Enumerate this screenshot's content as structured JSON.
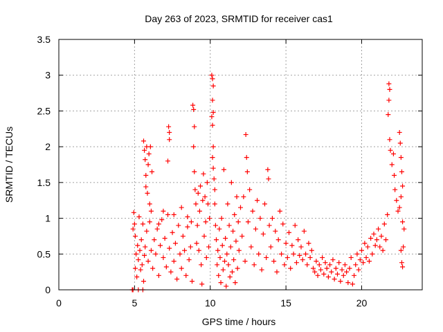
{
  "chart_data": {
    "type": "scatter",
    "title": "Day 263 of 2023, SRMTID for receiver cas1",
    "xlabel": "GPS time / hours",
    "ylabel": "SRMTID / TECUs",
    "xlim": [
      0,
      24
    ],
    "ylim": [
      0,
      3.5
    ],
    "x_ticks": [
      0,
      5,
      10,
      15,
      20
    ],
    "x_tick_labels": [
      "0",
      "5",
      "10",
      "15",
      "20"
    ],
    "y_ticks": [
      0,
      0.5,
      1,
      1.5,
      2,
      2.5,
      3,
      3.5
    ],
    "y_tick_labels": [
      "0",
      "0.5",
      "1",
      "1.5",
      "2",
      "2.5",
      "3",
      "3.5"
    ],
    "grid": true,
    "marker": "+",
    "color": "#ff0000",
    "series": [
      {
        "name": "SRMTID",
        "points": [
          [
            4.85,
            0.0
          ],
          [
            4.9,
            0.0
          ],
          [
            5.25,
            0.0
          ],
          [
            5.55,
            0.0
          ],
          [
            4.9,
            0.85
          ],
          [
            4.95,
            1.08
          ],
          [
            5.0,
            0.92
          ],
          [
            5.05,
            0.75
          ],
          [
            5.05,
            0.3
          ],
          [
            5.1,
            0.5
          ],
          [
            5.15,
            0.18
          ],
          [
            5.2,
            0.62
          ],
          [
            5.25,
            0.42
          ],
          [
            5.3,
            1.02
          ],
          [
            5.35,
            0.55
          ],
          [
            5.4,
            0.28
          ],
          [
            5.45,
            0.7
          ],
          [
            5.5,
            0.35
          ],
          [
            5.55,
            0.92
          ],
          [
            5.6,
            0.12
          ],
          [
            5.65,
            0.48
          ],
          [
            5.6,
            2.08
          ],
          [
            5.65,
            1.95
          ],
          [
            5.7,
            1.82
          ],
          [
            5.75,
            1.6
          ],
          [
            5.75,
            1.44
          ],
          [
            5.8,
            2.0
          ],
          [
            5.85,
            1.35
          ],
          [
            5.9,
            1.75
          ],
          [
            5.95,
            1.9
          ],
          [
            6.0,
            1.2
          ],
          [
            6.05,
            2.0
          ],
          [
            6.1,
            1.1
          ],
          [
            6.15,
            1.65
          ],
          [
            5.7,
            0.6
          ],
          [
            5.8,
            0.82
          ],
          [
            5.9,
            0.4
          ],
          [
            6.0,
            0.95
          ],
          [
            6.1,
            0.55
          ],
          [
            6.2,
            0.3
          ],
          [
            6.3,
            0.7
          ],
          [
            6.4,
            0.5
          ],
          [
            6.5,
            0.85
          ],
          [
            6.6,
            0.2
          ],
          [
            6.7,
            0.62
          ],
          [
            6.8,
            0.98
          ],
          [
            6.9,
            0.45
          ],
          [
            7.0,
            0.72
          ],
          [
            7.1,
            0.32
          ],
          [
            7.2,
            1.05
          ],
          [
            7.3,
            0.58
          ],
          [
            7.4,
            0.25
          ],
          [
            7.5,
            0.8
          ],
          [
            7.6,
            0.4
          ],
          [
            7.7,
            0.65
          ],
          [
            7.8,
            0.15
          ],
          [
            7.9,
            0.9
          ],
          [
            8.0,
            0.5
          ],
          [
            8.1,
            0.3
          ],
          [
            8.2,
            0.75
          ],
          [
            8.3,
            0.55
          ],
          [
            8.4,
            0.2
          ],
          [
            8.5,
            0.88
          ],
          [
            8.6,
            0.42
          ],
          [
            8.7,
            0.6
          ],
          [
            8.8,
            0.12
          ],
          [
            7.25,
            2.28
          ],
          [
            7.3,
            2.2
          ],
          [
            7.3,
            2.1
          ],
          [
            7.2,
            1.8
          ],
          [
            6.6,
            0.92
          ],
          [
            6.9,
            1.1
          ],
          [
            7.6,
            1.05
          ],
          [
            8.1,
            1.15
          ],
          [
            8.5,
            1.02
          ],
          [
            8.75,
            0.95
          ],
          [
            8.85,
            2.58
          ],
          [
            8.9,
            2.52
          ],
          [
            8.95,
            2.28
          ],
          [
            8.9,
            2.0
          ],
          [
            8.95,
            1.65
          ],
          [
            9.0,
            1.4
          ],
          [
            9.05,
            1.2
          ],
          [
            9.1,
            0.65
          ],
          [
            9.15,
            0.9
          ],
          [
            9.2,
            1.35
          ],
          [
            9.25,
            0.55
          ],
          [
            9.3,
            1.1
          ],
          [
            9.35,
            1.45
          ],
          [
            9.4,
            0.35
          ],
          [
            9.45,
            0.08
          ],
          [
            9.5,
            1.25
          ],
          [
            9.55,
            1.62
          ],
          [
            9.6,
            0.75
          ],
          [
            9.65,
            1.3
          ],
          [
            9.7,
            0.95
          ],
          [
            9.75,
            0.45
          ],
          [
            9.8,
            1.5
          ],
          [
            9.85,
            1.2
          ],
          [
            9.9,
            0.6
          ],
          [
            9.95,
            1.0
          ],
          [
            10.1,
            3.0
          ],
          [
            10.15,
            2.95
          ],
          [
            10.2,
            2.85
          ],
          [
            10.15,
            2.65
          ],
          [
            10.2,
            2.48
          ],
          [
            10.1,
            2.42
          ],
          [
            10.15,
            2.3
          ],
          [
            10.2,
            2.0
          ],
          [
            10.15,
            1.85
          ],
          [
            10.2,
            1.7
          ],
          [
            10.25,
            1.55
          ],
          [
            10.3,
            1.4
          ],
          [
            10.3,
            1.2
          ],
          [
            10.35,
            0.9
          ],
          [
            10.4,
            0.7
          ],
          [
            10.45,
            0.35
          ],
          [
            10.5,
            0.55
          ],
          [
            10.55,
            0.2
          ],
          [
            10.6,
            0.85
          ],
          [
            10.65,
            0.45
          ],
          [
            10.7,
            0.1
          ],
          [
            10.75,
            1.0
          ],
          [
            10.8,
            0.62
          ],
          [
            10.85,
            0.28
          ],
          [
            10.9,
            1.68
          ],
          [
            10.95,
            0.4
          ],
          [
            11.0,
            0.72
          ],
          [
            11.05,
            0.05
          ],
          [
            11.1,
            0.5
          ],
          [
            11.15,
            1.2
          ],
          [
            11.2,
            0.35
          ],
          [
            11.25,
            0.9
          ],
          [
            11.3,
            0.18
          ],
          [
            11.35,
            0.6
          ],
          [
            11.4,
            1.5
          ],
          [
            11.45,
            0.25
          ],
          [
            11.5,
            0.82
          ],
          [
            11.55,
            0.42
          ],
          [
            11.6,
            1.05
          ],
          [
            11.65,
            0.1
          ],
          [
            11.7,
            0.68
          ],
          [
            11.75,
            1.3
          ],
          [
            11.8,
            0.3
          ],
          [
            11.85,
            0.95
          ],
          [
            11.9,
            0.55
          ],
          [
            12.0,
            1.15
          ],
          [
            12.1,
            0.75
          ],
          [
            12.2,
            1.3
          ],
          [
            12.3,
            0.4
          ],
          [
            12.35,
            2.17
          ],
          [
            12.4,
            1.85
          ],
          [
            12.45,
            1.65
          ],
          [
            12.5,
            0.95
          ],
          [
            12.6,
            1.4
          ],
          [
            12.7,
            0.6
          ],
          [
            12.8,
            1.1
          ],
          [
            12.9,
            0.35
          ],
          [
            13.0,
            0.85
          ],
          [
            13.1,
            1.25
          ],
          [
            13.2,
            0.5
          ],
          [
            13.3,
            1.0
          ],
          [
            13.4,
            0.28
          ],
          [
            13.5,
            0.78
          ],
          [
            13.6,
            1.2
          ],
          [
            13.7,
            0.45
          ],
          [
            13.8,
            1.68
          ],
          [
            13.85,
            1.55
          ],
          [
            13.9,
            0.9
          ],
          [
            14.0,
            0.6
          ],
          [
            14.1,
            1.0
          ],
          [
            14.2,
            0.4
          ],
          [
            14.3,
            0.82
          ],
          [
            14.4,
            0.25
          ],
          [
            14.5,
            0.7
          ],
          [
            14.6,
            1.1
          ],
          [
            14.7,
            0.5
          ],
          [
            14.8,
            0.92
          ],
          [
            14.9,
            0.35
          ],
          [
            15.0,
            0.65
          ],
          [
            15.1,
            0.45
          ],
          [
            15.2,
            0.8
          ],
          [
            15.3,
            0.3
          ],
          [
            15.4,
            0.62
          ],
          [
            15.5,
            0.5
          ],
          [
            15.6,
            0.9
          ],
          [
            15.7,
            0.38
          ],
          [
            15.8,
            0.7
          ],
          [
            15.9,
            0.48
          ],
          [
            16.0,
            0.6
          ],
          [
            16.1,
            0.42
          ],
          [
            16.2,
            0.82
          ],
          [
            16.3,
            0.5
          ],
          [
            16.4,
            0.35
          ],
          [
            16.5,
            0.65
          ],
          [
            16.6,
            0.45
          ],
          [
            16.7,
            0.55
          ],
          [
            16.8,
            0.3
          ],
          [
            16.9,
            0.25
          ],
          [
            17.0,
            0.4
          ],
          [
            17.1,
            0.2
          ],
          [
            17.2,
            0.35
          ],
          [
            17.3,
            0.28
          ],
          [
            17.4,
            0.45
          ],
          [
            17.5,
            0.22
          ],
          [
            17.6,
            0.38
          ],
          [
            17.7,
            0.3
          ],
          [
            17.8,
            0.18
          ],
          [
            17.9,
            0.35
          ],
          [
            18.0,
            0.25
          ],
          [
            18.1,
            0.42
          ],
          [
            18.2,
            0.15
          ],
          [
            18.3,
            0.3
          ],
          [
            18.4,
            0.22
          ],
          [
            18.5,
            0.38
          ],
          [
            18.6,
            0.12
          ],
          [
            18.7,
            0.28
          ],
          [
            18.8,
            0.2
          ],
          [
            18.9,
            0.35
          ],
          [
            19.0,
            0.25
          ],
          [
            19.1,
            0.1
          ],
          [
            19.2,
            0.3
          ],
          [
            19.3,
            0.45
          ],
          [
            19.4,
            0.08
          ],
          [
            19.5,
            0.2
          ],
          [
            19.6,
            0.35
          ],
          [
            19.7,
            0.5
          ],
          [
            19.8,
            0.28
          ],
          [
            19.9,
            0.42
          ],
          [
            20.0,
            0.55
          ],
          [
            20.1,
            0.38
          ],
          [
            20.2,
            0.65
          ],
          [
            20.3,
            0.45
          ],
          [
            20.4,
            0.6
          ],
          [
            20.5,
            0.4
          ],
          [
            20.6,
            0.72
          ],
          [
            20.7,
            0.5
          ],
          [
            20.8,
            0.78
          ],
          [
            20.9,
            0.62
          ],
          [
            21.0,
            0.7
          ],
          [
            21.1,
            0.85
          ],
          [
            21.2,
            0.6
          ],
          [
            21.3,
            0.75
          ],
          [
            21.4,
            0.55
          ],
          [
            21.5,
            0.92
          ],
          [
            21.6,
            0.7
          ],
          [
            21.7,
            1.05
          ],
          [
            21.8,
            2.88
          ],
          [
            21.85,
            2.8
          ],
          [
            21.8,
            2.65
          ],
          [
            21.75,
            2.45
          ],
          [
            21.85,
            2.1
          ],
          [
            21.9,
            1.95
          ],
          [
            22.0,
            1.75
          ],
          [
            22.1,
            1.9
          ],
          [
            22.15,
            1.6
          ],
          [
            22.2,
            1.4
          ],
          [
            22.3,
            1.25
          ],
          [
            22.4,
            1.1
          ],
          [
            22.5,
            2.2
          ],
          [
            22.55,
            2.05
          ],
          [
            22.6,
            1.85
          ],
          [
            22.65,
            1.65
          ],
          [
            22.7,
            1.45
          ],
          [
            22.6,
            1.3
          ],
          [
            22.5,
            1.15
          ],
          [
            22.7,
            0.95
          ],
          [
            22.6,
            0.55
          ],
          [
            22.65,
            0.38
          ],
          [
            22.7,
            0.32
          ],
          [
            22.75,
            0.6
          ],
          [
            22.8,
            0.85
          ]
        ]
      }
    ]
  }
}
